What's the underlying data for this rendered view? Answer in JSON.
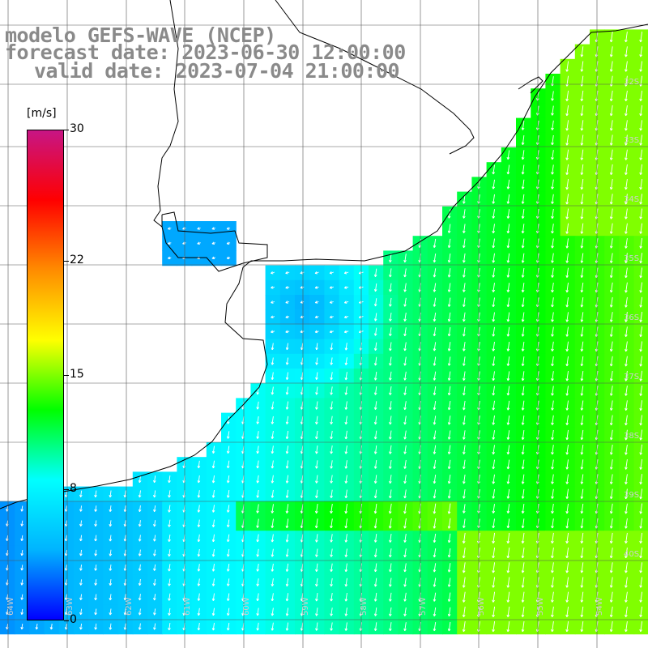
{
  "title": {
    "line1": "modelo GEFS-WAVE (NCEP)",
    "line2": "forecast date: 2023-06-30 12:00:00",
    "line3": "valid date: 2023-07-04 21:00:00"
  },
  "legend": {
    "unit": "[m/s]",
    "ticks": [
      "30",
      "22",
      "15",
      "8",
      "0"
    ],
    "tick_values": [
      30,
      22,
      15,
      8,
      0
    ],
    "colors": [
      "#0000ff",
      "#00b4ff",
      "#00ffff",
      "#00ff00",
      "#ffff00",
      "#ff8c00",
      "#ff0000",
      "#c71585"
    ]
  },
  "map": {
    "lat_labels": [
      "32S",
      "33S",
      "34S",
      "35S",
      "36S",
      "37S",
      "38S",
      "39S",
      "40S"
    ],
    "lon_labels": [
      "64W",
      "63W",
      "62W",
      "61W",
      "60W",
      "59W",
      "58W",
      "57W",
      "56W",
      "55W",
      "54W"
    ],
    "land_color": "#ffffff",
    "grid_color": "#555555",
    "coast_color": "#000000"
  }
}
